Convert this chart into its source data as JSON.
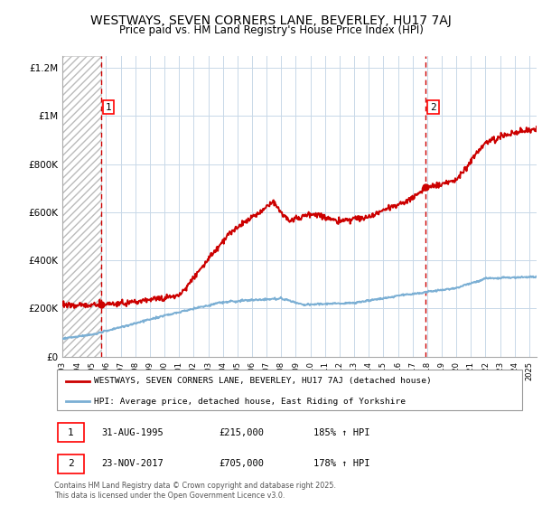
{
  "title": "WESTWAYS, SEVEN CORNERS LANE, BEVERLEY, HU17 7AJ",
  "subtitle": "Price paid vs. HM Land Registry's House Price Index (HPI)",
  "title_fontsize": 10,
  "subtitle_fontsize": 8.5,
  "ylim": [
    0,
    1250000
  ],
  "yticks": [
    0,
    200000,
    400000,
    600000,
    800000,
    1000000,
    1200000
  ],
  "ytick_labels": [
    "£0",
    "£200K",
    "£400K",
    "£600K",
    "£800K",
    "£1M",
    "£1.2M"
  ],
  "hpi_color": "#7bafd4",
  "property_color": "#cc0000",
  "grid_color": "#c8d8e8",
  "bg_color": "#ffffff",
  "sale1_date": 1995.66,
  "sale1_price": 215000,
  "sale1_label": "1",
  "sale2_date": 2017.9,
  "sale2_price": 705000,
  "sale2_label": "2",
  "legend_property_label": "WESTWAYS, SEVEN CORNERS LANE, BEVERLEY, HU17 7AJ (detached house)",
  "legend_hpi_label": "HPI: Average price, detached house, East Riding of Yorkshire",
  "footer": "Contains HM Land Registry data © Crown copyright and database right 2025.\nThis data is licensed under the Open Government Licence v3.0.",
  "xmin": 1993.0,
  "xmax": 2025.5
}
